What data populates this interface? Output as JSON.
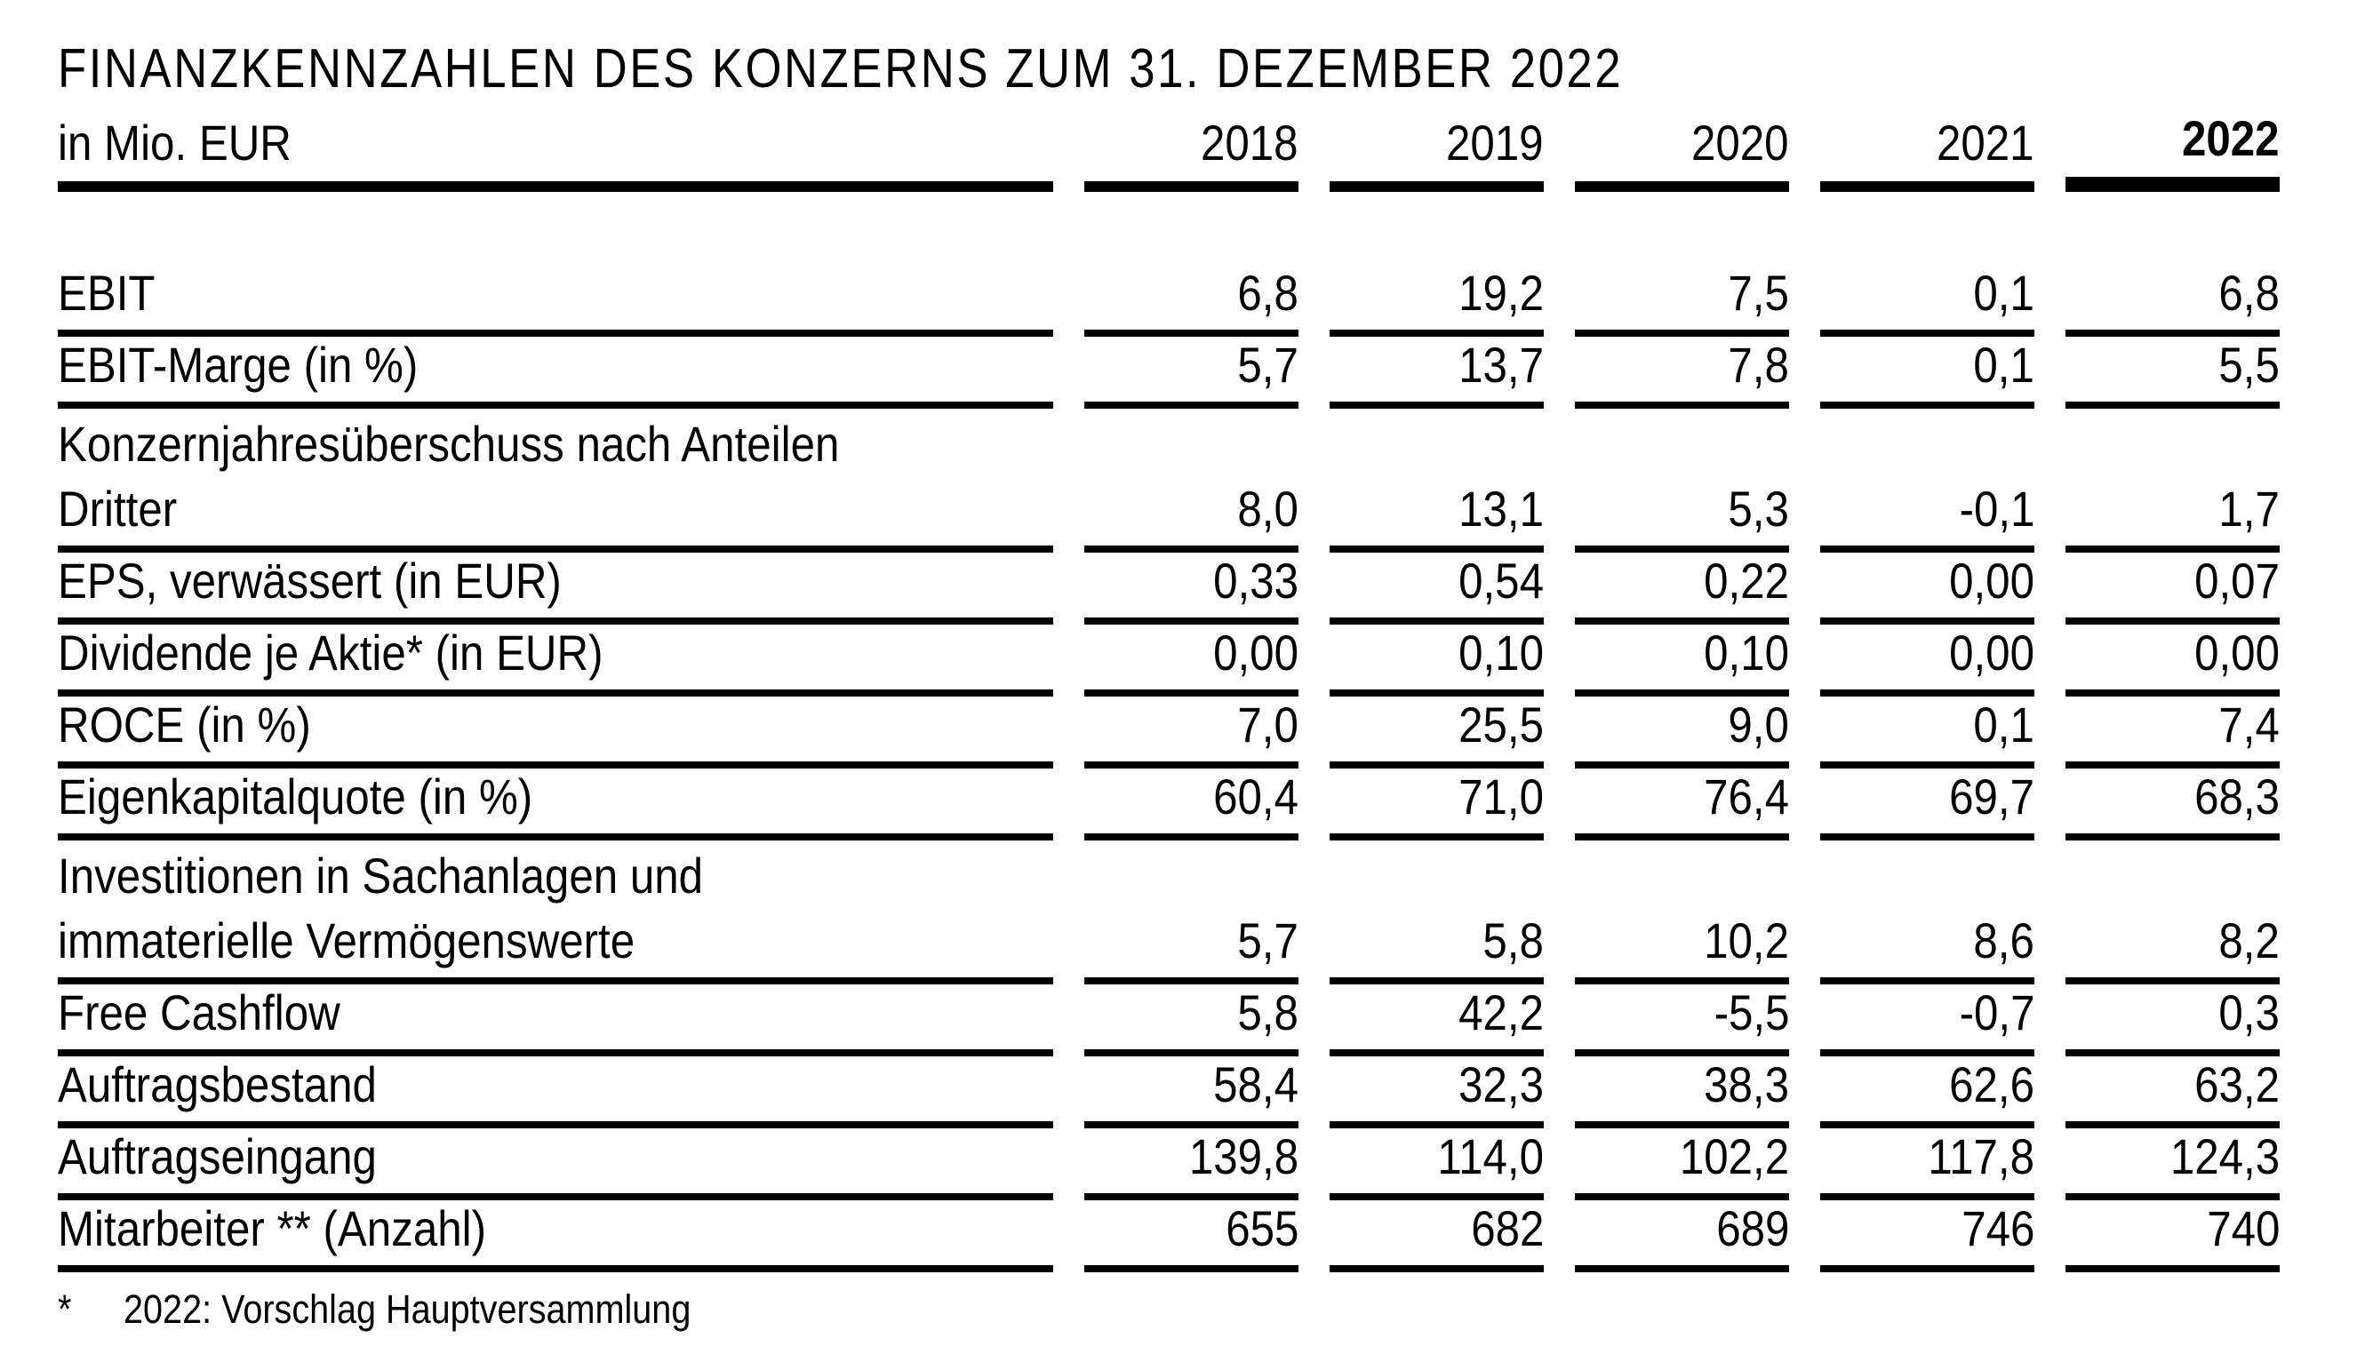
{
  "title": "FINANZKENNZAHLEN DES KONZERNS ZUM 31. DEZEMBER 2022",
  "table": {
    "unit_label": "in Mio. EUR",
    "years": [
      "2018",
      "2019",
      "2020",
      "2021",
      "2022"
    ],
    "rows": [
      {
        "label_lines": [
          "EBIT"
        ],
        "values": [
          "6,8",
          "19,2",
          "7,5",
          "0,1",
          "6,8"
        ]
      },
      {
        "label_lines": [
          "EBIT-Marge (in %)"
        ],
        "values": [
          "5,7",
          "13,7",
          "7,8",
          "0,1",
          "5,5"
        ]
      },
      {
        "label_lines": [
          "Konzernjahresüberschuss nach Anteilen",
          "Dritter"
        ],
        "values": [
          "8,0",
          "13,1",
          "5,3",
          "-0,1",
          "1,7"
        ]
      },
      {
        "label_lines": [
          "EPS, verwässert (in EUR)"
        ],
        "values": [
          "0,33",
          "0,54",
          "0,22",
          "0,00",
          "0,07"
        ]
      },
      {
        "label_lines": [
          "Dividende je Aktie* (in EUR)"
        ],
        "values": [
          "0,00",
          "0,10",
          "0,10",
          "0,00",
          "0,00"
        ]
      },
      {
        "label_lines": [
          "ROCE (in %)"
        ],
        "values": [
          "7,0",
          "25,5",
          "9,0",
          "0,1",
          "7,4"
        ]
      },
      {
        "label_lines": [
          "Eigenkapitalquote (in %)"
        ],
        "values": [
          "60,4",
          "71,0",
          "76,4",
          "69,7",
          "68,3"
        ]
      },
      {
        "label_lines": [
          "Investitionen in Sachanlagen und",
          "immaterielle Vermögenswerte"
        ],
        "values": [
          "5,7",
          "5,8",
          "10,2",
          "8,6",
          "8,2"
        ]
      },
      {
        "label_lines": [
          "Free Cashflow"
        ],
        "values": [
          "5,8",
          "42,2",
          "-5,5",
          "-0,7",
          "0,3"
        ]
      },
      {
        "label_lines": [
          "Auftragsbestand"
        ],
        "values": [
          "58,4",
          "32,3",
          "38,3",
          "62,6",
          "63,2"
        ]
      },
      {
        "label_lines": [
          "Auftragseingang"
        ],
        "values": [
          "139,8",
          "114,0",
          "102,2",
          "117,8",
          "124,3"
        ]
      },
      {
        "label_lines": [
          "Mitarbeiter ** (Anzahl)"
        ],
        "values": [
          "655",
          "682",
          "689",
          "746",
          "740"
        ]
      }
    ],
    "footnote_marker": "*",
    "footnote_text": "2022: Vorschlag Hauptversammlung"
  },
  "chart_data": {
    "type": "table",
    "title": "FINANZKENNZAHLEN DES KONZERNS ZUM 31. DEZEMBER 2022",
    "unit": "in Mio. EUR",
    "columns": [
      2018,
      2019,
      2020,
      2021,
      2022
    ],
    "rows": [
      {
        "metric": "EBIT",
        "values": [
          6.8,
          19.2,
          7.5,
          0.1,
          6.8
        ]
      },
      {
        "metric": "EBIT-Marge (in %)",
        "values": [
          5.7,
          13.7,
          7.8,
          0.1,
          5.5
        ]
      },
      {
        "metric": "Konzernjahresüberschuss nach Anteilen Dritter",
        "values": [
          8.0,
          13.1,
          5.3,
          -0.1,
          1.7
        ]
      },
      {
        "metric": "EPS, verwässert (in EUR)",
        "values": [
          0.33,
          0.54,
          0.22,
          0.0,
          0.07
        ]
      },
      {
        "metric": "Dividende je Aktie* (in EUR)",
        "values": [
          0.0,
          0.1,
          0.1,
          0.0,
          0.0
        ]
      },
      {
        "metric": "ROCE (in %)",
        "values": [
          7.0,
          25.5,
          9.0,
          0.1,
          7.4
        ]
      },
      {
        "metric": "Eigenkapitalquote (in %)",
        "values": [
          60.4,
          71.0,
          76.4,
          69.7,
          68.3
        ]
      },
      {
        "metric": "Investitionen in Sachanlagen und immaterielle Vermögenswerte",
        "values": [
          5.7,
          5.8,
          10.2,
          8.6,
          8.2
        ]
      },
      {
        "metric": "Free Cashflow",
        "values": [
          5.8,
          42.2,
          -5.5,
          -0.7,
          0.3
        ]
      },
      {
        "metric": "Auftragsbestand",
        "values": [
          58.4,
          32.3,
          38.3,
          62.6,
          63.2
        ]
      },
      {
        "metric": "Auftragseingang",
        "values": [
          139.8,
          114.0,
          102.2,
          117.8,
          124.3
        ]
      },
      {
        "metric": "Mitarbeiter ** (Anzahl)",
        "values": [
          655,
          682,
          689,
          746,
          740
        ]
      }
    ]
  }
}
